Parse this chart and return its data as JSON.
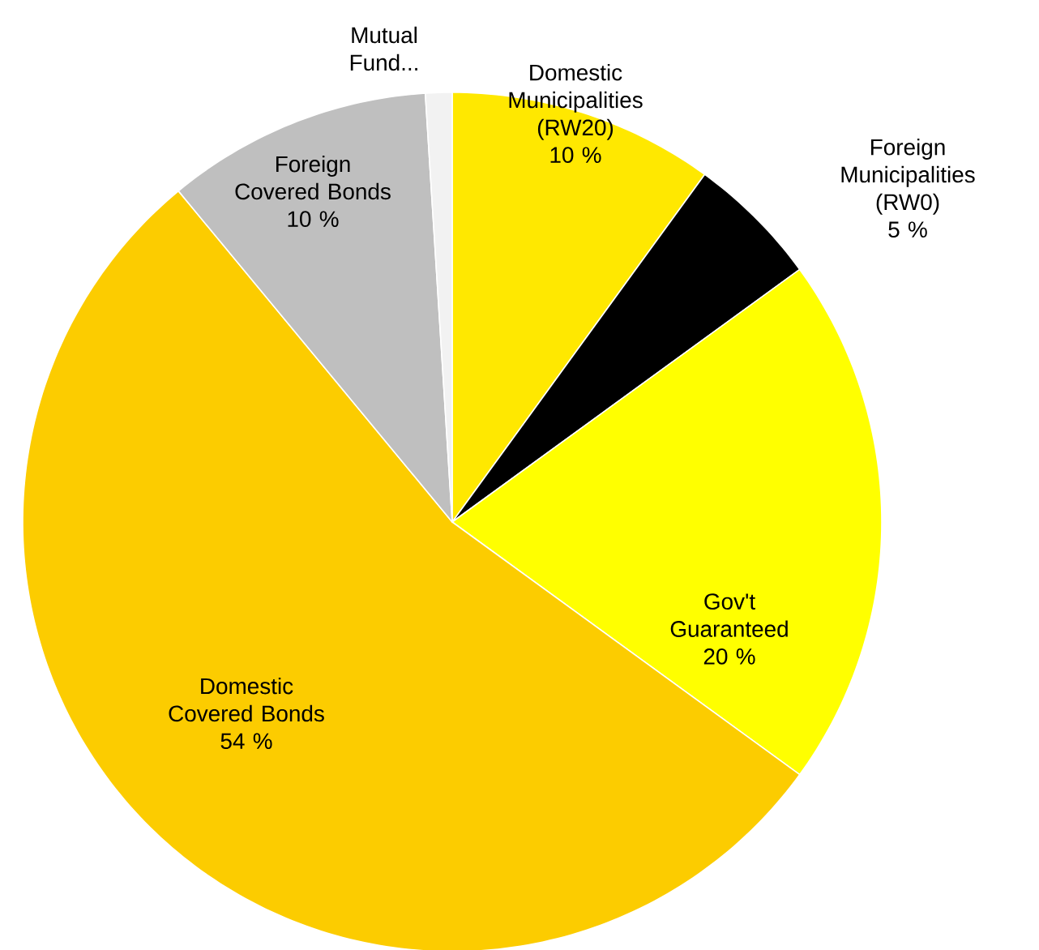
{
  "chart_data": {
    "type": "pie",
    "categories": [
      "Domestic Municipalities (RW20)",
      "Foreign Municipalities (RW0)",
      "Gov't Guaranteed",
      "Domestic Covered Bonds",
      "Foreign Covered Bonds",
      "Mutual Fund..."
    ],
    "values": [
      10,
      5,
      20,
      54,
      10,
      1
    ],
    "value_labels": [
      "10 %",
      "5 %",
      "20 %",
      "54 %",
      "10 %",
      null
    ],
    "colors": [
      "#ffe800",
      "#000000",
      "#ffff00",
      "#fccc00",
      "#bfbfbf",
      "#f2f2f2"
    ]
  }
}
